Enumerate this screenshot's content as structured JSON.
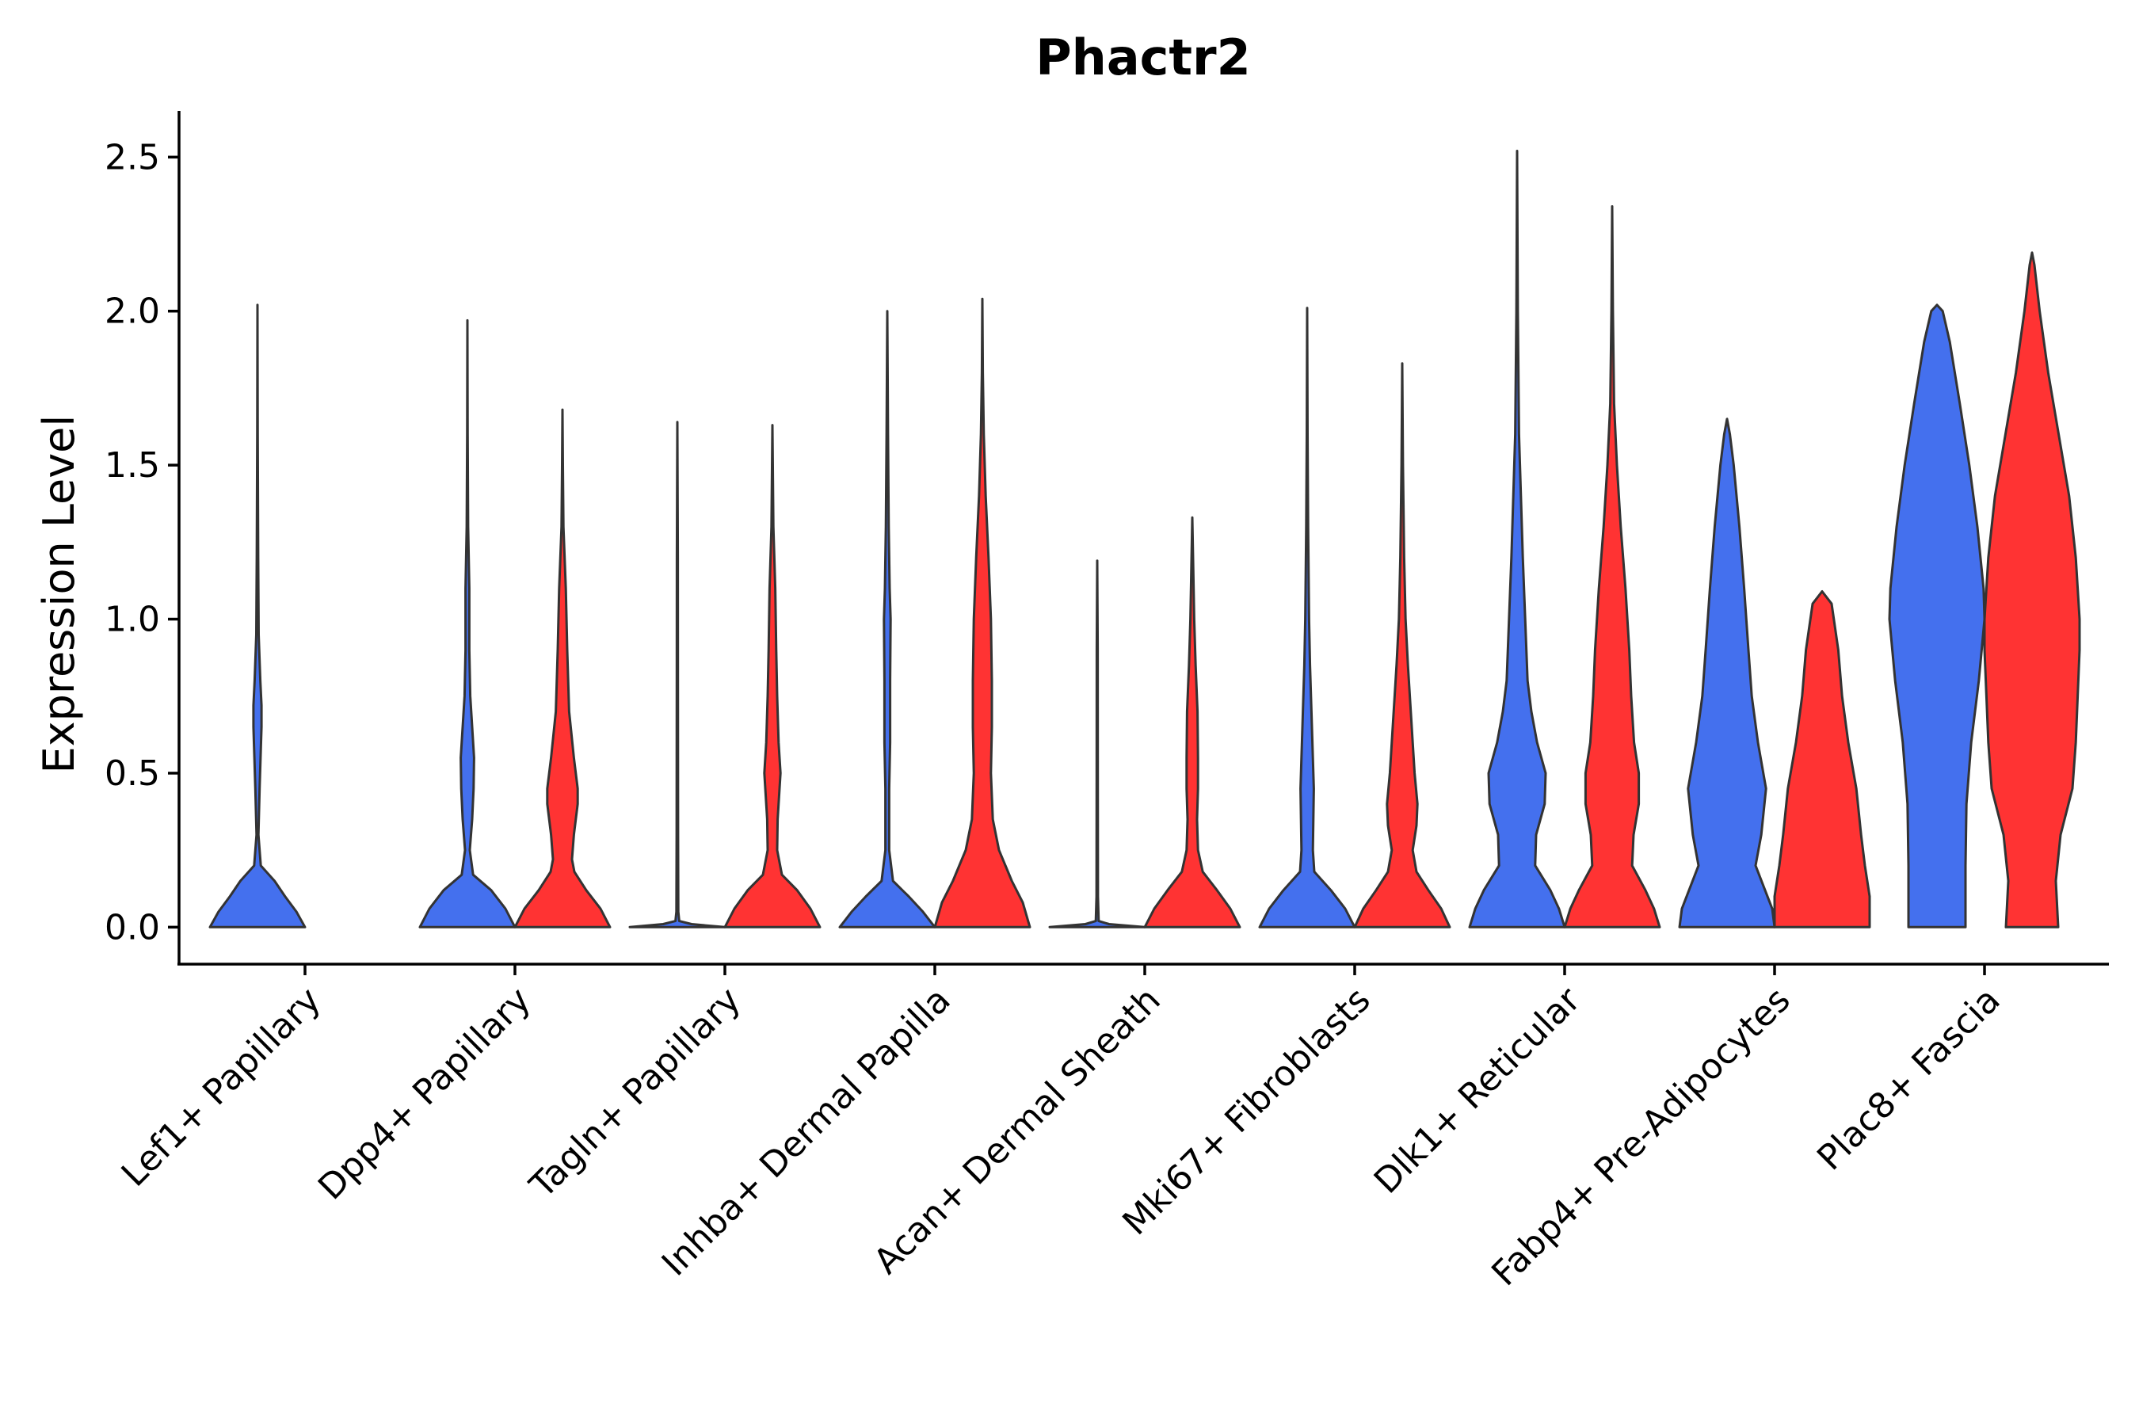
{
  "chart_data": {
    "type": "violin",
    "title": "Phactr2",
    "xlabel": "",
    "ylabel": "Expression Level",
    "ylim": [
      -0.12,
      2.65
    ],
    "yticks": [
      "0.0",
      "0.5",
      "1.0",
      "1.5",
      "2.0",
      "2.5"
    ],
    "ytick_values": [
      0.0,
      0.5,
      1.0,
      1.5,
      2.0,
      2.5
    ],
    "categories": [
      "Lef1+ Papillary",
      "Dpp4+ Papillary",
      "Tagln+ Papillary",
      "Inhba+ Dermal Papilla",
      "Acan+ Dermal Sheath",
      "Mki67+ Fibroblasts",
      "Dlk1+ Reticular",
      "Fabp4+ Pre-Adipocytes",
      "Plac8+ Fascia"
    ],
    "series_colors": [
      "#4470ee",
      "#ff3333"
    ],
    "violins": [
      {
        "category": 0,
        "series": 0,
        "max": 2.02,
        "profile": [
          [
            0,
            1
          ],
          [
            0.05,
            0.82
          ],
          [
            0.1,
            0.58
          ],
          [
            0.15,
            0.36
          ],
          [
            0.2,
            0.07
          ],
          [
            0.3,
            0.02
          ],
          [
            0.45,
            0.045
          ],
          [
            0.55,
            0.065
          ],
          [
            0.65,
            0.085
          ],
          [
            0.72,
            0.085
          ],
          [
            0.8,
            0.06
          ],
          [
            0.95,
            0.025
          ],
          [
            1.2,
            0.015
          ],
          [
            1.6,
            0.005
          ],
          [
            2.02,
            0
          ]
        ]
      },
      {
        "category": 1,
        "series": 0,
        "max": 1.97,
        "profile": [
          [
            0,
            1
          ],
          [
            0.06,
            0.8
          ],
          [
            0.12,
            0.5
          ],
          [
            0.17,
            0.12
          ],
          [
            0.25,
            0.05
          ],
          [
            0.35,
            0.1
          ],
          [
            0.45,
            0.13
          ],
          [
            0.55,
            0.14
          ],
          [
            0.65,
            0.1
          ],
          [
            0.75,
            0.06
          ],
          [
            0.9,
            0.04
          ],
          [
            1.1,
            0.04
          ],
          [
            1.3,
            0.015
          ],
          [
            1.6,
            0.005
          ],
          [
            1.97,
            0
          ]
        ]
      },
      {
        "category": 1,
        "series": 1,
        "max": 1.68,
        "profile": [
          [
            0,
            1
          ],
          [
            0.06,
            0.8
          ],
          [
            0.12,
            0.5
          ],
          [
            0.18,
            0.25
          ],
          [
            0.22,
            0.2
          ],
          [
            0.3,
            0.24
          ],
          [
            0.4,
            0.32
          ],
          [
            0.45,
            0.32
          ],
          [
            0.55,
            0.24
          ],
          [
            0.7,
            0.14
          ],
          [
            0.9,
            0.1
          ],
          [
            1.1,
            0.07
          ],
          [
            1.3,
            0.02
          ],
          [
            1.5,
            0.008
          ],
          [
            1.68,
            0
          ]
        ]
      },
      {
        "category": 2,
        "series": 0,
        "max": 1.64,
        "profile": [
          [
            0,
            1
          ],
          [
            0.01,
            0.3
          ],
          [
            0.02,
            0.04
          ],
          [
            0.05,
            0.02
          ],
          [
            0.3,
            0.015
          ],
          [
            0.8,
            0.012
          ],
          [
            1.2,
            0.01
          ],
          [
            1.64,
            0
          ]
        ]
      },
      {
        "category": 2,
        "series": 1,
        "max": 1.63,
        "profile": [
          [
            0,
            1
          ],
          [
            0.06,
            0.8
          ],
          [
            0.12,
            0.52
          ],
          [
            0.17,
            0.2
          ],
          [
            0.25,
            0.1
          ],
          [
            0.35,
            0.11
          ],
          [
            0.45,
            0.15
          ],
          [
            0.5,
            0.17
          ],
          [
            0.6,
            0.13
          ],
          [
            0.75,
            0.1
          ],
          [
            0.9,
            0.08
          ],
          [
            1.1,
            0.06
          ],
          [
            1.3,
            0.02
          ],
          [
            1.63,
            0
          ]
        ]
      },
      {
        "category": 3,
        "series": 0,
        "max": 2.0,
        "profile": [
          [
            0,
            1
          ],
          [
            0.05,
            0.75
          ],
          [
            0.1,
            0.45
          ],
          [
            0.15,
            0.12
          ],
          [
            0.25,
            0.04
          ],
          [
            0.45,
            0.04
          ],
          [
            0.6,
            0.06
          ],
          [
            0.8,
            0.06
          ],
          [
            1.0,
            0.07
          ],
          [
            1.1,
            0.05
          ],
          [
            1.3,
            0.03
          ],
          [
            1.6,
            0.015
          ],
          [
            2.0,
            0
          ]
        ]
      },
      {
        "category": 3,
        "series": 1,
        "max": 2.04,
        "profile": [
          [
            0,
            1
          ],
          [
            0.08,
            0.85
          ],
          [
            0.15,
            0.62
          ],
          [
            0.25,
            0.35
          ],
          [
            0.35,
            0.22
          ],
          [
            0.5,
            0.18
          ],
          [
            0.65,
            0.2
          ],
          [
            0.8,
            0.2
          ],
          [
            1.0,
            0.18
          ],
          [
            1.2,
            0.13
          ],
          [
            1.4,
            0.07
          ],
          [
            1.6,
            0.03
          ],
          [
            1.8,
            0.01
          ],
          [
            2.04,
            0
          ]
        ]
      },
      {
        "category": 4,
        "series": 0,
        "max": 1.19,
        "profile": [
          [
            0,
            1
          ],
          [
            0.01,
            0.25
          ],
          [
            0.02,
            0.03
          ],
          [
            0.1,
            0.015
          ],
          [
            0.5,
            0.012
          ],
          [
            0.9,
            0.01
          ],
          [
            1.19,
            0
          ]
        ]
      },
      {
        "category": 4,
        "series": 1,
        "max": 1.33,
        "profile": [
          [
            0,
            1
          ],
          [
            0.06,
            0.8
          ],
          [
            0.12,
            0.52
          ],
          [
            0.18,
            0.22
          ],
          [
            0.25,
            0.12
          ],
          [
            0.35,
            0.1
          ],
          [
            0.45,
            0.12
          ],
          [
            0.55,
            0.12
          ],
          [
            0.7,
            0.11
          ],
          [
            0.85,
            0.07
          ],
          [
            1.0,
            0.04
          ],
          [
            1.33,
            0
          ]
        ]
      },
      {
        "category": 5,
        "series": 0,
        "max": 2.01,
        "profile": [
          [
            0,
            1
          ],
          [
            0.06,
            0.8
          ],
          [
            0.12,
            0.5
          ],
          [
            0.18,
            0.15
          ],
          [
            0.25,
            0.12
          ],
          [
            0.35,
            0.13
          ],
          [
            0.45,
            0.14
          ],
          [
            0.55,
            0.12
          ],
          [
            0.7,
            0.09
          ],
          [
            0.85,
            0.06
          ],
          [
            1.0,
            0.04
          ],
          [
            1.3,
            0.02
          ],
          [
            1.6,
            0.008
          ],
          [
            2.01,
            0
          ]
        ]
      },
      {
        "category": 5,
        "series": 1,
        "max": 1.83,
        "profile": [
          [
            0,
            1
          ],
          [
            0.06,
            0.82
          ],
          [
            0.12,
            0.55
          ],
          [
            0.18,
            0.3
          ],
          [
            0.25,
            0.22
          ],
          [
            0.33,
            0.3
          ],
          [
            0.4,
            0.32
          ],
          [
            0.5,
            0.26
          ],
          [
            0.6,
            0.22
          ],
          [
            0.7,
            0.18
          ],
          [
            0.85,
            0.12
          ],
          [
            1.0,
            0.07
          ],
          [
            1.2,
            0.04
          ],
          [
            1.5,
            0.015
          ],
          [
            1.83,
            0
          ]
        ]
      },
      {
        "category": 6,
        "series": 0,
        "max": 2.52,
        "profile": [
          [
            0,
            1
          ],
          [
            0.06,
            0.88
          ],
          [
            0.12,
            0.7
          ],
          [
            0.2,
            0.38
          ],
          [
            0.3,
            0.4
          ],
          [
            0.4,
            0.58
          ],
          [
            0.5,
            0.6
          ],
          [
            0.6,
            0.42
          ],
          [
            0.7,
            0.3
          ],
          [
            0.8,
            0.22
          ],
          [
            1.0,
            0.17
          ],
          [
            1.2,
            0.12
          ],
          [
            1.4,
            0.08
          ],
          [
            1.6,
            0.04
          ],
          [
            2.0,
            0.015
          ],
          [
            2.52,
            0
          ]
        ]
      },
      {
        "category": 6,
        "series": 1,
        "max": 2.34,
        "profile": [
          [
            0,
            1
          ],
          [
            0.06,
            0.88
          ],
          [
            0.12,
            0.7
          ],
          [
            0.2,
            0.42
          ],
          [
            0.3,
            0.45
          ],
          [
            0.4,
            0.56
          ],
          [
            0.5,
            0.56
          ],
          [
            0.6,
            0.46
          ],
          [
            0.75,
            0.4
          ],
          [
            0.9,
            0.36
          ],
          [
            1.1,
            0.28
          ],
          [
            1.3,
            0.18
          ],
          [
            1.5,
            0.1
          ],
          [
            1.7,
            0.04
          ],
          [
            2.0,
            0.015
          ],
          [
            2.34,
            0
          ]
        ]
      },
      {
        "category": 7,
        "series": 0,
        "max": 1.65,
        "profile": [
          [
            0,
            1
          ],
          [
            0.06,
            0.95
          ],
          [
            0.12,
            0.8
          ],
          [
            0.2,
            0.6
          ],
          [
            0.3,
            0.72
          ],
          [
            0.45,
            0.82
          ],
          [
            0.6,
            0.65
          ],
          [
            0.75,
            0.52
          ],
          [
            0.9,
            0.45
          ],
          [
            1.1,
            0.36
          ],
          [
            1.3,
            0.26
          ],
          [
            1.5,
            0.14
          ],
          [
            1.6,
            0.06
          ],
          [
            1.65,
            0
          ]
        ]
      },
      {
        "category": 7,
        "series": 1,
        "max": 1.09,
        "profile": [
          [
            0,
            1
          ],
          [
            0.1,
            1
          ],
          [
            0.2,
            0.9
          ],
          [
            0.3,
            0.82
          ],
          [
            0.45,
            0.72
          ],
          [
            0.6,
            0.55
          ],
          [
            0.75,
            0.42
          ],
          [
            0.9,
            0.34
          ],
          [
            1.05,
            0.2
          ],
          [
            1.09,
            0
          ]
        ]
      },
      {
        "category": 8,
        "series": 0,
        "max": 2.02,
        "profile": [
          [
            0,
            0.6
          ],
          [
            0.2,
            0.6
          ],
          [
            0.4,
            0.62
          ],
          [
            0.6,
            0.72
          ],
          [
            0.8,
            0.88
          ],
          [
            1.0,
            1
          ],
          [
            1.1,
            0.98
          ],
          [
            1.3,
            0.85
          ],
          [
            1.5,
            0.68
          ],
          [
            1.7,
            0.48
          ],
          [
            1.9,
            0.27
          ],
          [
            2.0,
            0.12
          ],
          [
            2.02,
            0
          ]
        ]
      },
      {
        "category": 8,
        "series": 1,
        "max": 2.19,
        "profile": [
          [
            0,
            0.55
          ],
          [
            0.15,
            0.5
          ],
          [
            0.3,
            0.6
          ],
          [
            0.45,
            0.85
          ],
          [
            0.6,
            0.92
          ],
          [
            0.75,
            0.96
          ],
          [
            0.9,
            1
          ],
          [
            1.0,
            1
          ],
          [
            1.2,
            0.92
          ],
          [
            1.4,
            0.78
          ],
          [
            1.6,
            0.56
          ],
          [
            1.8,
            0.34
          ],
          [
            2.0,
            0.16
          ],
          [
            2.15,
            0.05
          ],
          [
            2.19,
            0
          ]
        ]
      }
    ]
  }
}
